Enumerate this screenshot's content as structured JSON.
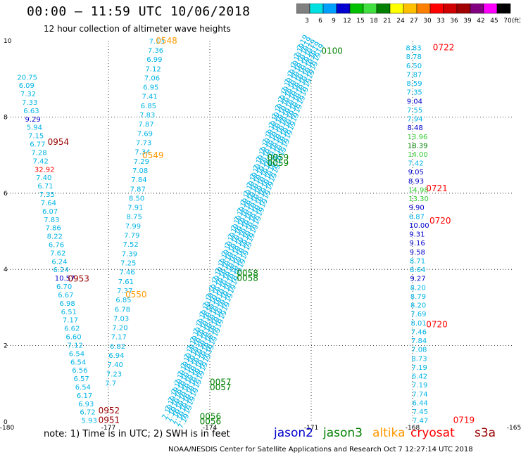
{
  "header": {
    "title": "00:00 – 11:59 UTC 10/06/2018",
    "subtitle": "12 hour collection of altimeter wave heights"
  },
  "colorbar": {
    "labels": [
      "3",
      "6",
      "9",
      "12",
      "15",
      "18",
      "21",
      "24",
      "27",
      "30",
      "33",
      "36",
      "39",
      "42",
      "45",
      "70"
    ],
    "unit": "(ft)",
    "colors": [
      "#808080",
      "#00e0e0",
      "#00a0ff",
      "#0000d0",
      "#00c000",
      "#40e040",
      "#008000",
      "#ffff00",
      "#ffc000",
      "#ff8000",
      "#ff0000",
      "#d00000",
      "#a00000",
      "#800080",
      "#ff00ff",
      "#000000"
    ]
  },
  "footer": {
    "note": "note:  1) Time is in UTC;  2) SWH is in feet",
    "credit": "NOAA/NESDIS Center for Satellite Applications and Research     Oct  7 12:27:14 UTC 2018"
  },
  "legend": [
    {
      "name": "jason2",
      "color": "#0000cc"
    },
    {
      "name": "jason3",
      "color": "#008000"
    },
    {
      "name": "altika",
      "color": "#ff9900"
    },
    {
      "name": "cryosat",
      "color": "#ff0000"
    },
    {
      "name": "s3a",
      "color": "#990000"
    }
  ],
  "chart_data": {
    "type": "scatter",
    "title": "12 hour collection of altimeter wave heights",
    "x_ticks": [
      "-180",
      "-177",
      "-174",
      "-171",
      "-168",
      "-165"
    ],
    "y_ticks": [
      "0",
      "2",
      "4",
      "6",
      "8",
      "10"
    ],
    "xlim": [
      -180,
      -165
    ],
    "ylim": [
      0,
      10
    ],
    "grid": true,
    "colors": {
      "cyan": "#00b4e6",
      "blue": "#0000cc",
      "green": "#008000",
      "lgreen": "#33cc33",
      "orange": "#ff9900",
      "red": "#ff0000",
      "dred": "#990000"
    },
    "time_labels": [
      {
        "text": "0548",
        "x": -175.6,
        "y": 9.93,
        "c": "orange"
      },
      {
        "text": "0549",
        "x": -176.0,
        "y": 6.92,
        "c": "orange"
      },
      {
        "text": "0550",
        "x": -176.5,
        "y": 3.27,
        "c": "orange"
      },
      {
        "text": "0954",
        "x": -178.8,
        "y": 7.27,
        "c": "dred"
      },
      {
        "text": "0953",
        "x": -178.2,
        "y": 3.68,
        "c": "dred"
      },
      {
        "text": "0952",
        "x": -177.3,
        "y": 0.22,
        "c": "dred"
      },
      {
        "text": "0951",
        "x": -177.3,
        "y": -0.03,
        "c": "dred"
      },
      {
        "text": "0100",
        "x": -170.7,
        "y": 9.66,
        "c": "green"
      },
      {
        "text": "0059",
        "x": -172.3,
        "y": 6.86,
        "c": "green"
      },
      {
        "text": "0059",
        "x": -172.3,
        "y": 6.72,
        "c": "green"
      },
      {
        "text": "0058",
        "x": -173.2,
        "y": 3.83,
        "c": "green"
      },
      {
        "text": "0058",
        "x": -173.2,
        "y": 3.7,
        "c": "green"
      },
      {
        "text": "0057",
        "x": -174.0,
        "y": 0.97,
        "c": "green"
      },
      {
        "text": "0057",
        "x": -174.0,
        "y": 0.83,
        "c": "green"
      },
      {
        "text": "0056",
        "x": -174.3,
        "y": 0.06,
        "c": "green"
      },
      {
        "text": "0056",
        "x": -174.3,
        "y": -0.06,
        "c": "green"
      },
      {
        "text": "0722",
        "x": -167.4,
        "y": 9.75,
        "c": "red"
      },
      {
        "text": "0721",
        "x": -167.6,
        "y": 6.05,
        "c": "red"
      },
      {
        "text": "0720",
        "x": -167.5,
        "y": 5.2,
        "c": "red"
      },
      {
        "text": "0720",
        "x": -167.6,
        "y": 2.48,
        "c": "red"
      },
      {
        "text": "0719",
        "x": -166.8,
        "y": -0.03,
        "c": "red"
      }
    ],
    "tracks": [
      {
        "satellite": "s3a",
        "x0": -179.7,
        "x1": -177.8,
        "y0": 8.98,
        "y1": -0.03,
        "values": [
          "20.75",
          "6.09",
          "7.32",
          "7.33",
          "6.63",
          "9.29",
          "5.94",
          "7.15",
          "6.77",
          "7.28",
          "7.42",
          "32.92",
          "7.40",
          "6.71",
          "7.35",
          "7.64",
          "6.07",
          "7.83",
          "7.86",
          "8.22",
          "6.76",
          "7.62",
          "6.24",
          "6.24",
          "10.57",
          "6.70",
          "6.67",
          "6.98",
          "6.51",
          "7.17",
          "6.62",
          "6.60",
          "7.12",
          "6.54",
          "6.54",
          "6.56",
          "6.57",
          "6.54",
          "6.17",
          "6.93",
          "6.72",
          "5.93"
        ],
        "colors": {
          "5": "blue",
          "11": "red",
          "24": "blue"
        }
      },
      {
        "satellite": "altika",
        "x0": -175.8,
        "x1": -177.1,
        "y0": 9.93,
        "y1": 0.95,
        "values": [
          "7.13",
          "7.36",
          "6.99",
          "7.12",
          "7.06",
          "6.95",
          "7.41",
          "6.85",
          "7.83",
          "7.87",
          "7.69",
          "7.73",
          "7.34",
          "7.29",
          "7.08",
          "7.84",
          "7.87",
          "8.50",
          "7.91",
          "8.75",
          "7.99",
          "7.79",
          "7.52",
          "7.39",
          "7.25",
          "7.46",
          "7.61",
          "7.37",
          "6.85",
          "6.78",
          "7.03",
          "7.20",
          "7.17",
          "6.82",
          "6.94",
          "7.40",
          "7.23",
          "7.7"
        ],
        "colors": {}
      },
      {
        "satellite": "cryosat",
        "x0": -168.2,
        "x1": -168.0,
        "y0": 9.75,
        "y1": -0.03,
        "values": [
          "8.83",
          "8.78",
          "6.50",
          "7.87",
          "8.59",
          "7.35",
          "9.04",
          "7.55",
          "7.94",
          "8.48",
          "13.96",
          "18.39",
          "14.00",
          "7.42",
          "9.05",
          "8.93",
          "14.98",
          "13.30",
          "9.90",
          "6.87",
          "10.00",
          "9.31",
          "9.16",
          "9.58",
          "8.71",
          "8.64",
          "9.27",
          "8.20",
          "8.79",
          "8.20",
          "7.69",
          "8.01",
          "7.46",
          "7.84",
          "7.08",
          "8.73",
          "7.19",
          "6.42",
          "7.19",
          "7.74",
          "6.44",
          "7.45",
          "7.47"
        ],
        "colors": {
          "6": "blue",
          "9": "blue",
          "10": "lgreen",
          "11": "green",
          "12": "lgreen",
          "14": "blue",
          "15": "blue",
          "16": "lgreen",
          "17": "lgreen",
          "18": "blue",
          "20": "blue",
          "21": "blue",
          "22": "blue",
          "23": "blue",
          "26": "blue"
        }
      }
    ],
    "jason3_pass": {
      "label": "7.19",
      "x_bottom": -175.3,
      "y_bottom": 0.05,
      "x_top": -171.3,
      "y_top": 9.75,
      "n_lines": 5,
      "n_points": 44
    }
  }
}
